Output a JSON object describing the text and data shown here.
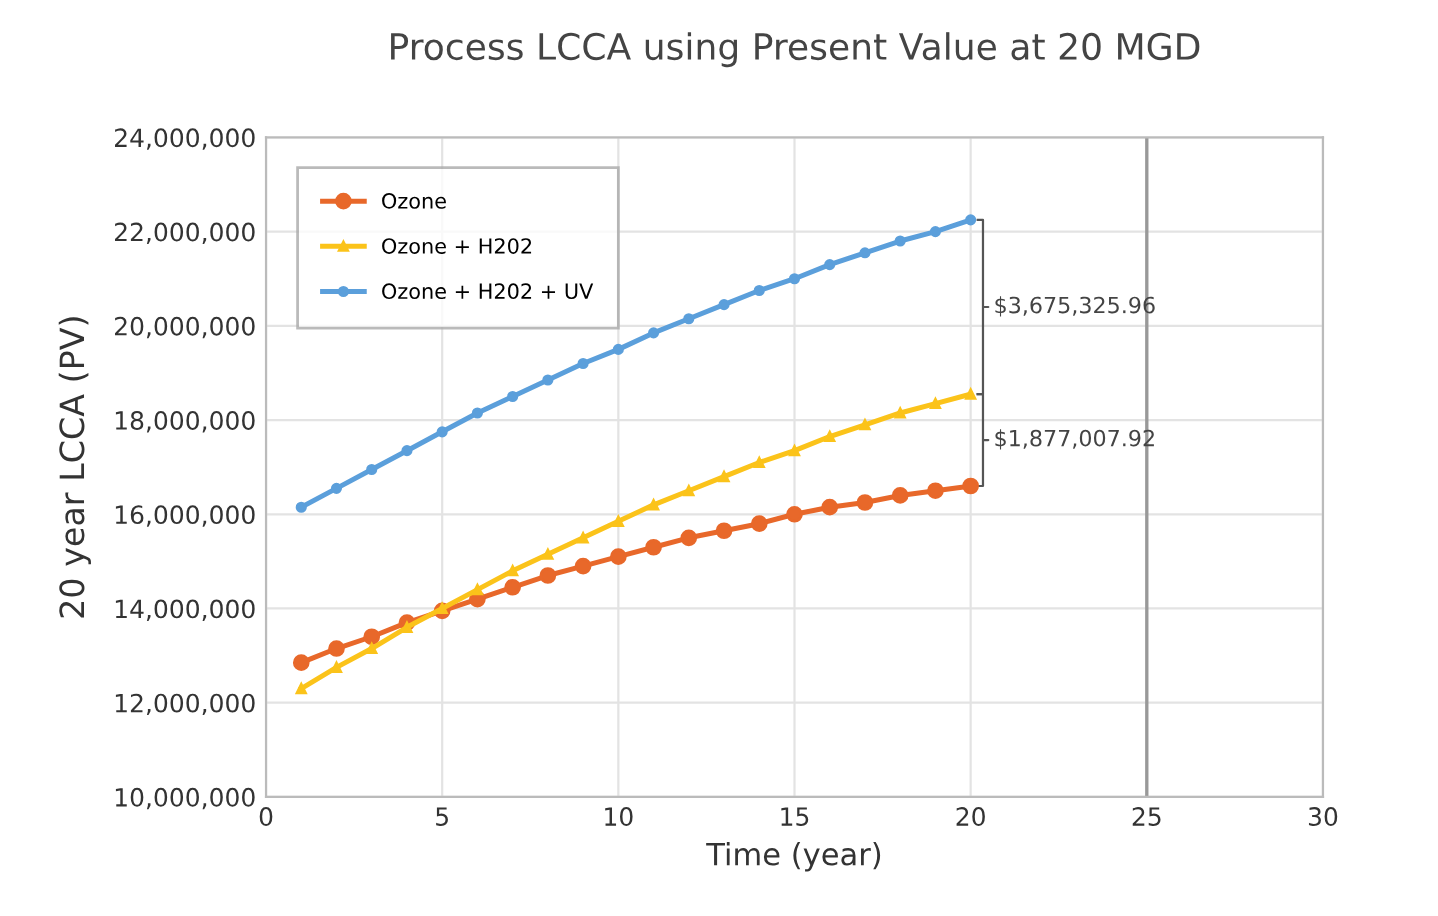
{
  "chart_data": {
    "type": "line",
    "title": "Process LCCA using Present Value at 20 MGD",
    "xlabel": "Time (year)",
    "ylabel": "20 year LCCA (PV)",
    "x": [
      1,
      2,
      3,
      4,
      5,
      6,
      7,
      8,
      9,
      10,
      11,
      12,
      13,
      14,
      15,
      16,
      17,
      18,
      19,
      20
    ],
    "series": [
      {
        "name": "Ozone",
        "color": "#e8682a",
        "marker": "circle",
        "values": [
          12850000,
          13150000,
          13400000,
          13700000,
          13950000,
          14200000,
          14450000,
          14700000,
          14900000,
          15100000,
          15300000,
          15500000,
          15650000,
          15800000,
          16000000,
          16150000,
          16250000,
          16400000,
          16500000,
          16600000
        ]
      },
      {
        "name": "Ozone + H202",
        "color": "#fbc31a",
        "marker": "triangle",
        "values": [
          12300000,
          12750000,
          13150000,
          13600000,
          14000000,
          14400000,
          14800000,
          15150000,
          15500000,
          15850000,
          16200000,
          16500000,
          16800000,
          17100000,
          17350000,
          17650000,
          17900000,
          18150000,
          18350000,
          18550000
        ]
      },
      {
        "name": "Ozone + H202 + UV",
        "color": "#5b9fdb",
        "marker": "circle",
        "values": [
          16150000,
          16550000,
          16950000,
          17350000,
          17750000,
          18150000,
          18500000,
          18850000,
          19200000,
          19500000,
          19850000,
          20150000,
          20450000,
          20750000,
          21000000,
          21300000,
          21550000,
          21800000,
          22000000,
          22250000
        ]
      }
    ],
    "xlim": [
      0,
      30
    ],
    "xticks": [
      0,
      5,
      10,
      15,
      20,
      25,
      30
    ],
    "ylim": [
      10000000,
      24000000
    ],
    "yticks": [
      {
        "value": 10000000,
        "label": "10,000,000"
      },
      {
        "value": 12000000,
        "label": "12,000,000"
      },
      {
        "value": 14000000,
        "label": "14,000,000"
      },
      {
        "value": 16000000,
        "label": "16,000,000"
      },
      {
        "value": 18000000,
        "label": "18,000,000"
      },
      {
        "value": 20000000,
        "label": "20,000,000"
      },
      {
        "value": 22000000,
        "label": "22,000,000"
      },
      {
        "value": 24000000,
        "label": "24,000,000"
      }
    ],
    "ref_lines": [
      {
        "axis": "x",
        "value": 25,
        "color": "#999999"
      }
    ],
    "annotations": [
      "$3,675,325.96",
      "$1,877,007.92"
    ],
    "grid": true,
    "legend": "top left",
    "line_style": "solid"
  }
}
